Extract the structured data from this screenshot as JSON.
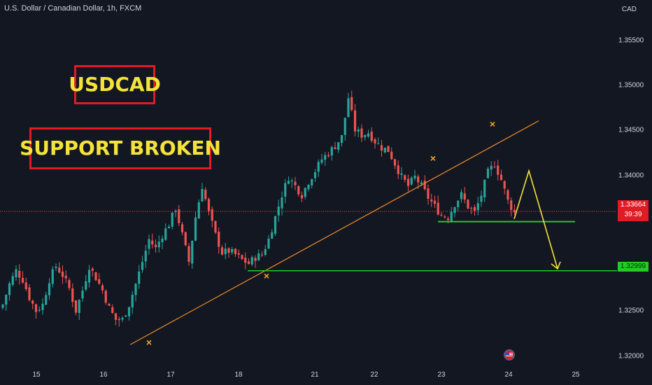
{
  "header": {
    "symbol_title": "U.S. Dollar / Canadian Dollar, 1h, FXCM",
    "currency": "CAD"
  },
  "annotations": {
    "badge_1": "USDCAD",
    "badge_2": "SUPPORT BROKEN"
  },
  "price_axis": {
    "ticks": [
      "1.35500",
      "1.35000",
      "1.34500",
      "1.34000",
      "1.32500",
      "1.32000"
    ],
    "current_price": "1.33664",
    "countdown": "39:39",
    "support_price": "1.32999"
  },
  "time_axis": {
    "ticks": [
      "15",
      "16",
      "17",
      "18",
      "21",
      "22",
      "23",
      "24",
      "25"
    ]
  },
  "colors": {
    "background": "#131722",
    "bull": "#26a69a",
    "bear": "#ef5350",
    "trendline": "#f28c28",
    "support_line": "#22cc22",
    "arrow": "#f5e33b",
    "marker": "#f5a623",
    "badge_border": "#e01b24",
    "badge_text": "#f5e33b"
  },
  "icons": {
    "event_flag": "us-flag-icon",
    "pivot_marker": "x-mark-icon"
  },
  "chart_data": {
    "type": "candlestick",
    "x": [
      "15",
      "16",
      "17",
      "18",
      "21",
      "22",
      "23",
      "24",
      "25"
    ],
    "ylim": [
      1.32,
      1.358
    ],
    "key_prices": {
      "current": 1.33664,
      "support": 1.32999,
      "broken_support": 1.3355
    },
    "close_path": [
      [
        0,
        1.3262
      ],
      [
        2,
        1.3285
      ],
      [
        4,
        1.33
      ],
      [
        6,
        1.329
      ],
      [
        8,
        1.327
      ],
      [
        10,
        1.3255
      ],
      [
        12,
        1.3262
      ],
      [
        14,
        1.329
      ],
      [
        16,
        1.3305
      ],
      [
        18,
        1.3295
      ],
      [
        20,
        1.328
      ],
      [
        22,
        1.3255
      ],
      [
        24,
        1.3278
      ],
      [
        26,
        1.3305
      ],
      [
        28,
        1.3292
      ],
      [
        30,
        1.3278
      ],
      [
        32,
        1.3258
      ],
      [
        34,
        1.3245
      ],
      [
        36,
        1.3245
      ],
      [
        38,
        1.3262
      ],
      [
        40,
        1.3285
      ],
      [
        42,
        1.331
      ],
      [
        44,
        1.3335
      ],
      [
        46,
        1.3325
      ],
      [
        48,
        1.334
      ],
      [
        50,
        1.3352
      ],
      [
        52,
        1.337
      ],
      [
        54,
        1.334
      ],
      [
        56,
        1.331
      ],
      [
        58,
        1.336
      ],
      [
        60,
        1.3395
      ],
      [
        62,
        1.3365
      ],
      [
        64,
        1.334
      ],
      [
        66,
        1.332
      ],
      [
        68,
        1.3322
      ],
      [
        70,
        1.3318
      ],
      [
        72,
        1.3312
      ],
      [
        74,
        1.3308
      ],
      [
        76,
        1.3315
      ],
      [
        78,
        1.3318
      ],
      [
        80,
        1.3335
      ],
      [
        82,
        1.336
      ],
      [
        84,
        1.3385
      ],
      [
        86,
        1.3405
      ],
      [
        88,
        1.3395
      ],
      [
        90,
        1.3385
      ],
      [
        92,
        1.34
      ],
      [
        94,
        1.3412
      ],
      [
        96,
        1.3425
      ],
      [
        98,
        1.3432
      ],
      [
        100,
        1.344
      ],
      [
        102,
        1.345
      ],
      [
        104,
        1.3494
      ],
      [
        106,
        1.3458
      ],
      [
        108,
        1.3452
      ],
      [
        110,
        1.3455
      ],
      [
        112,
        1.3445
      ],
      [
        114,
        1.3438
      ],
      [
        116,
        1.3435
      ],
      [
        118,
        1.342
      ],
      [
        120,
        1.3405
      ],
      [
        122,
        1.3395
      ],
      [
        124,
        1.3405
      ],
      [
        126,
        1.3395
      ],
      [
        128,
        1.3382
      ],
      [
        130,
        1.3372
      ],
      [
        132,
        1.3362
      ],
      [
        134,
        1.336
      ],
      [
        136,
        1.3375
      ],
      [
        138,
        1.3385
      ],
      [
        140,
        1.3372
      ],
      [
        142,
        1.3365
      ],
      [
        144,
        1.3385
      ],
      [
        146,
        1.341
      ],
      [
        148,
        1.342
      ],
      [
        150,
        1.3402
      ],
      [
        152,
        1.3378
      ],
      [
        154,
        1.3365
      ]
    ],
    "trendline": [
      [
        1.3217,
        17
      ],
      [
        1.3468,
        24.4
      ]
    ],
    "forecast_arrow": [
      1.3358,
      1.3412,
      1.3299
    ],
    "pivot_marks": [
      "16.7",
      "18.4",
      "22.9",
      "23.7"
    ]
  }
}
